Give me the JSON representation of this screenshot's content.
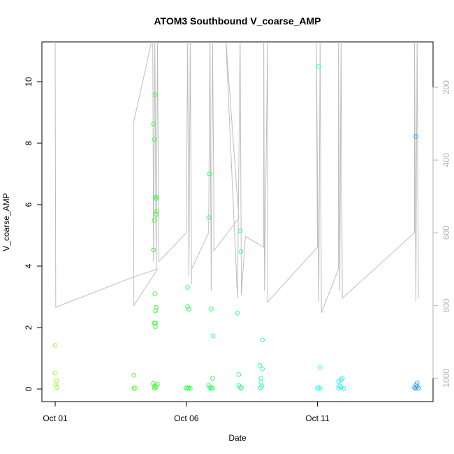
{
  "chart_data": {
    "type": "scatter",
    "title": "ATOM3 Southbound V_coarse_AMP",
    "xlabel": "Date",
    "ylabel": "V_coarse_AMP",
    "x_tick_labels": [
      "Oct 01",
      "Oct 06",
      "Oct 11"
    ],
    "x_tick_values": [
      1,
      6,
      11
    ],
    "xlim": [
      1,
      14.9
    ],
    "ylim": [
      0,
      11
    ],
    "y_tick_values": [
      0,
      2,
      4,
      6,
      8,
      10
    ],
    "secondary_axis": {
      "position": "right",
      "reversed": true,
      "tick_values": [
        200,
        400,
        600,
        800,
        1000
      ],
      "ylim": [
        1030,
        100
      ],
      "color": "#b3b3b3"
    },
    "grid": false,
    "points": [
      [
        1.0,
        1.42,
        "#9cff33"
      ],
      [
        1.0,
        0.52,
        "#9cff33"
      ],
      [
        1.05,
        0.28,
        "#9cff33"
      ],
      [
        1.02,
        0.15,
        "#9cff33"
      ],
      [
        1.05,
        0.05,
        "#9cff33"
      ],
      [
        4.0,
        0.45,
        "#5cff33"
      ],
      [
        4.0,
        0.02,
        "#5cff33"
      ],
      [
        4.05,
        0.03,
        "#5cff33"
      ],
      [
        4.75,
        8.63,
        "#3cff33"
      ],
      [
        4.8,
        9.58,
        "#3cff33"
      ],
      [
        4.78,
        8.12,
        "#3cff33"
      ],
      [
        4.85,
        6.25,
        "#3cff33"
      ],
      [
        4.85,
        6.2,
        "#3cff33"
      ],
      [
        4.88,
        5.78,
        "#3cff33"
      ],
      [
        4.85,
        5.68,
        "#3cff33"
      ],
      [
        4.78,
        5.49,
        "#3cff33"
      ],
      [
        4.75,
        4.52,
        "#3cff33"
      ],
      [
        4.8,
        3.1,
        "#3cff33"
      ],
      [
        4.85,
        2.66,
        "#3cff33"
      ],
      [
        4.83,
        2.55,
        "#3cff33"
      ],
      [
        4.78,
        2.15,
        "#3cff33"
      ],
      [
        4.82,
        2.15,
        "#3cff33"
      ],
      [
        4.82,
        2.03,
        "#3cff33"
      ],
      [
        4.75,
        0.18,
        "#3cff33"
      ],
      [
        4.9,
        0.15,
        "#3cff33"
      ],
      [
        4.8,
        0.1,
        "#3cff33"
      ],
      [
        4.85,
        0.06,
        "#3cff33"
      ],
      [
        4.78,
        0.03,
        "#3cff33"
      ],
      [
        6.05,
        3.31,
        "#33ff55"
      ],
      [
        6.05,
        2.68,
        "#33ff55"
      ],
      [
        6.1,
        2.6,
        "#33ff55"
      ],
      [
        6.0,
        0.03,
        "#33ff55"
      ],
      [
        6.05,
        0.02,
        "#33ff55"
      ],
      [
        6.15,
        0.02,
        "#33ff55"
      ],
      [
        6.08,
        0.05,
        "#33ff55"
      ],
      [
        6.88,
        7.0,
        "#33ff66"
      ],
      [
        6.85,
        5.58,
        "#33ff66"
      ],
      [
        6.95,
        2.6,
        "#33ff66"
      ],
      [
        7.02,
        1.73,
        "#33ff66"
      ],
      [
        7.0,
        0.35,
        "#33ff66"
      ],
      [
        6.85,
        0.12,
        "#33ff66"
      ],
      [
        6.9,
        0.05,
        "#33ff66"
      ],
      [
        7.0,
        0.03,
        "#33ff66"
      ],
      [
        6.95,
        0.02,
        "#33ff66"
      ],
      [
        8.05,
        5.15,
        "#33ff8a"
      ],
      [
        8.08,
        4.47,
        "#33ff8a"
      ],
      [
        7.95,
        2.47,
        "#33ff8a"
      ],
      [
        8.0,
        0.47,
        "#33ff8a"
      ],
      [
        8.0,
        0.12,
        "#33ff8a"
      ],
      [
        8.05,
        0.06,
        "#33ff8a"
      ],
      [
        8.1,
        0.03,
        "#33ff8a"
      ],
      [
        8.9,
        1.6,
        "#33ffa8"
      ],
      [
        8.8,
        0.77,
        "#33ffa8"
      ],
      [
        8.9,
        0.65,
        "#33ffa8"
      ],
      [
        8.85,
        0.35,
        "#33ffa8"
      ],
      [
        8.85,
        0.22,
        "#33ffa8"
      ],
      [
        8.88,
        0.1,
        "#33ffa8"
      ],
      [
        8.82,
        0.04,
        "#33ffa8"
      ],
      [
        11.05,
        10.5,
        "#33ffee"
      ],
      [
        11.1,
        0.7,
        "#33ffee"
      ],
      [
        11.05,
        0.05,
        "#33ffee"
      ],
      [
        11.0,
        0.03,
        "#33ffee"
      ],
      [
        11.1,
        0.01,
        "#33ffee"
      ],
      [
        11.8,
        0.25,
        "#33eeff"
      ],
      [
        11.95,
        0.35,
        "#33eeff"
      ],
      [
        11.9,
        0.3,
        "#33eeff"
      ],
      [
        11.85,
        0.1,
        "#33eeff"
      ],
      [
        11.9,
        0.05,
        "#33eeff"
      ],
      [
        11.8,
        0.03,
        "#33eeff"
      ],
      [
        12.0,
        0.02,
        "#33eeff"
      ],
      [
        14.75,
        8.22,
        "#33a6ff"
      ],
      [
        14.8,
        0.2,
        "#33a6ff"
      ],
      [
        14.75,
        0.12,
        "#33a6ff"
      ],
      [
        14.8,
        0.08,
        "#33a6ff"
      ],
      [
        14.7,
        0.05,
        "#33a6ff"
      ],
      [
        14.85,
        0.03,
        "#33a6ff"
      ],
      [
        14.75,
        0.02,
        "#33a6ff"
      ]
    ],
    "line_color": "#bebebe",
    "line": [
      [
        1.0,
        60
      ],
      [
        1.02,
        805
      ],
      [
        4.05,
        720
      ],
      [
        4.9,
        700
      ],
      [
        4.0,
        800
      ],
      [
        3.98,
        300
      ],
      [
        4.72,
        60
      ],
      [
        4.75,
        680
      ],
      [
        4.8,
        60
      ],
      [
        4.85,
        700
      ],
      [
        4.9,
        60
      ],
      [
        4.95,
        680
      ],
      [
        6.0,
        600
      ],
      [
        6.05,
        60
      ],
      [
        6.1,
        720
      ],
      [
        6.15,
        60
      ],
      [
        6.2,
        740
      ],
      [
        6.2,
        700
      ],
      [
        6.85,
        600
      ],
      [
        6.9,
        60
      ],
      [
        6.95,
        760
      ],
      [
        7.0,
        70
      ],
      [
        7.05,
        520
      ],
      [
        7.05,
        650
      ],
      [
        8.0,
        560
      ],
      [
        7.5,
        60
      ],
      [
        7.95,
        780
      ],
      [
        8.05,
        60
      ],
      [
        8.1,
        770
      ],
      [
        8.25,
        610
      ],
      [
        8.95,
        640
      ],
      [
        8.95,
        60
      ],
      [
        8.98,
        760
      ],
      [
        9.1,
        60
      ],
      [
        9.1,
        790
      ],
      [
        11.0,
        640
      ],
      [
        10.95,
        60
      ],
      [
        11.05,
        790
      ],
      [
        11.1,
        60
      ],
      [
        11.15,
        820
      ],
      [
        11.8,
        700
      ],
      [
        11.8,
        60
      ],
      [
        11.85,
        760
      ],
      [
        11.9,
        60
      ],
      [
        11.95,
        780
      ],
      [
        14.7,
        600
      ],
      [
        14.7,
        60
      ],
      [
        14.75,
        790
      ],
      [
        14.8,
        60
      ],
      [
        14.85,
        780
      ]
    ]
  }
}
